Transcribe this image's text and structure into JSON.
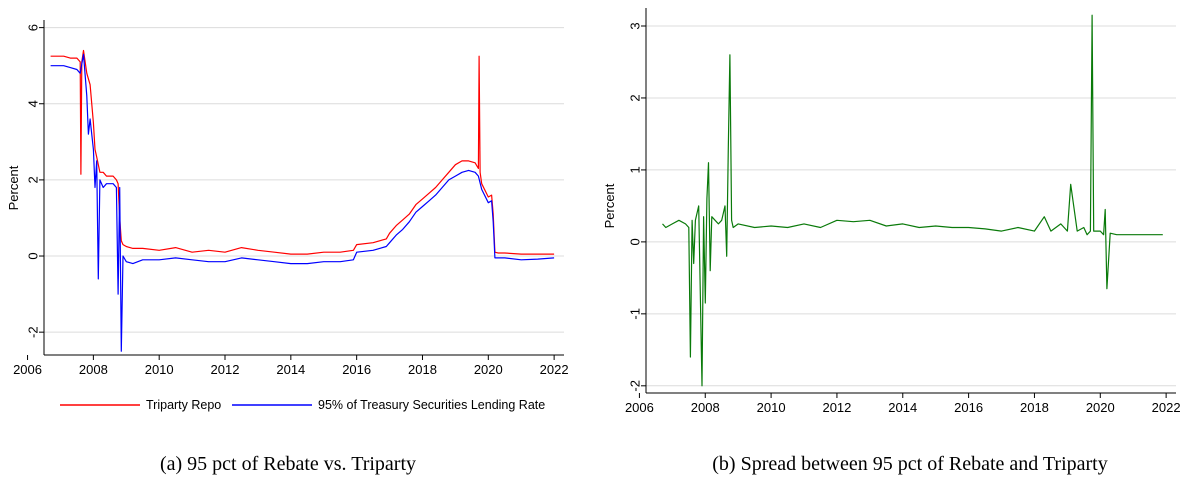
{
  "chart_data": [
    {
      "type": "line",
      "panel": "a",
      "caption": "(a) 95 pct of Rebate vs. Triparty",
      "xlabel": "",
      "ylabel": "Percent",
      "xlim": [
        2006.5,
        2022.3
      ],
      "ylim": [
        -2.6,
        6.2
      ],
      "xticks": [
        2006,
        2008,
        2010,
        2012,
        2014,
        2016,
        2018,
        2020,
        2022
      ],
      "yticks": [
        -2,
        0,
        2,
        4,
        6
      ],
      "grid": true,
      "legend": "bottom",
      "series": [
        {
          "name": "Triparty Repo",
          "color": "#ff0000",
          "x": [
            2006.7,
            2006.9,
            2007.1,
            2007.3,
            2007.5,
            2007.6,
            2007.62,
            2007.65,
            2007.7,
            2007.8,
            2007.9,
            2008.0,
            2008.05,
            2008.1,
            2008.2,
            2008.3,
            2008.4,
            2008.5,
            2008.6,
            2008.7,
            2008.75,
            2008.8,
            2008.85,
            2008.9,
            2009.0,
            2009.2,
            2009.5,
            2010.0,
            2010.5,
            2011.0,
            2011.5,
            2012.0,
            2012.5,
            2013.0,
            2013.5,
            2014.0,
            2014.5,
            2015.0,
            2015.5,
            2015.9,
            2016.0,
            2016.5,
            2016.9,
            2017.0,
            2017.2,
            2017.4,
            2017.6,
            2017.8,
            2018.0,
            2018.2,
            2018.4,
            2018.6,
            2018.8,
            2019.0,
            2019.2,
            2019.4,
            2019.6,
            2019.7,
            2019.72,
            2019.75,
            2019.8,
            2020.0,
            2020.1,
            2020.15,
            2020.2,
            2020.3,
            2020.5,
            2021.0,
            2021.5,
            2022.0
          ],
          "y": [
            5.25,
            5.25,
            5.25,
            5.2,
            5.2,
            5.1,
            2.15,
            5.1,
            5.4,
            4.8,
            4.5,
            3.5,
            2.8,
            2.6,
            2.2,
            2.2,
            2.1,
            2.1,
            2.1,
            2.0,
            1.9,
            1.0,
            0.4,
            0.3,
            0.25,
            0.2,
            0.2,
            0.15,
            0.22,
            0.1,
            0.15,
            0.1,
            0.22,
            0.15,
            0.1,
            0.05,
            0.05,
            0.1,
            0.1,
            0.15,
            0.3,
            0.35,
            0.45,
            0.6,
            0.8,
            0.95,
            1.1,
            1.35,
            1.5,
            1.65,
            1.8,
            2.0,
            2.2,
            2.4,
            2.5,
            2.5,
            2.45,
            2.3,
            5.25,
            2.2,
            1.9,
            1.55,
            1.6,
            1.1,
            0.1,
            0.08,
            0.08,
            0.05,
            0.05,
            0.05
          ]
        },
        {
          "name": "95% of Treasury Securities Lending Rate",
          "color": "#0000ff",
          "x": [
            2006.7,
            2006.9,
            2007.1,
            2007.3,
            2007.5,
            2007.6,
            2007.7,
            2007.8,
            2007.85,
            2007.9,
            2008.0,
            2008.05,
            2008.1,
            2008.15,
            2008.2,
            2008.3,
            2008.4,
            2008.5,
            2008.6,
            2008.7,
            2008.75,
            2008.8,
            2008.85,
            2008.9,
            2009.0,
            2009.2,
            2009.5,
            2010.0,
            2010.5,
            2011.0,
            2011.5,
            2012.0,
            2012.5,
            2013.0,
            2013.5,
            2014.0,
            2014.5,
            2015.0,
            2015.5,
            2015.9,
            2016.0,
            2016.5,
            2016.9,
            2017.0,
            2017.2,
            2017.4,
            2017.6,
            2017.8,
            2018.0,
            2018.2,
            2018.4,
            2018.6,
            2018.8,
            2019.0,
            2019.2,
            2019.4,
            2019.6,
            2019.7,
            2019.8,
            2020.0,
            2020.1,
            2020.15,
            2020.2,
            2020.3,
            2020.5,
            2021.0,
            2021.5,
            2022.0
          ],
          "y": [
            5.0,
            5.0,
            5.0,
            4.95,
            4.9,
            4.8,
            5.3,
            4.2,
            3.2,
            3.6,
            2.8,
            1.8,
            2.5,
            -0.6,
            2.0,
            1.8,
            1.9,
            1.9,
            1.9,
            1.8,
            -1.0,
            1.8,
            -2.5,
            0.0,
            -0.15,
            -0.2,
            -0.1,
            -0.1,
            -0.05,
            -0.1,
            -0.15,
            -0.15,
            -0.05,
            -0.1,
            -0.15,
            -0.2,
            -0.2,
            -0.15,
            -0.15,
            -0.1,
            0.1,
            0.15,
            0.25,
            0.35,
            0.55,
            0.7,
            0.9,
            1.15,
            1.3,
            1.45,
            1.6,
            1.8,
            2.0,
            2.1,
            2.2,
            2.25,
            2.2,
            2.1,
            1.75,
            1.4,
            1.45,
            0.9,
            -0.05,
            -0.05,
            -0.05,
            -0.1,
            -0.08,
            -0.05
          ]
        }
      ]
    },
    {
      "type": "line",
      "panel": "b",
      "caption": "(b) Spread between 95 pct of Rebate and Triparty",
      "xlabel": "",
      "ylabel": "Percent",
      "xlim": [
        2006.2,
        2022.3
      ],
      "ylim": [
        -2.1,
        3.25
      ],
      "xticks": [
        2006,
        2008,
        2010,
        2012,
        2014,
        2016,
        2018,
        2020,
        2022
      ],
      "yticks": [
        -2,
        -1,
        0,
        1,
        2,
        3
      ],
      "grid": true,
      "legend": "none",
      "series": [
        {
          "name": "",
          "color": "#0a7a0a",
          "x": [
            2006.7,
            2006.8,
            2007.0,
            2007.2,
            2007.4,
            2007.5,
            2007.55,
            2007.6,
            2007.65,
            2007.7,
            2007.8,
            2007.9,
            2007.95,
            2008.0,
            2008.05,
            2008.1,
            2008.15,
            2008.2,
            2008.3,
            2008.4,
            2008.5,
            2008.6,
            2008.65,
            2008.7,
            2008.75,
            2008.8,
            2008.85,
            2009.0,
            2009.5,
            2010.0,
            2010.5,
            2011.0,
            2011.5,
            2012.0,
            2012.5,
            2013.0,
            2013.5,
            2014.0,
            2014.5,
            2015.0,
            2015.5,
            2016.0,
            2016.5,
            2017.0,
            2017.5,
            2018.0,
            2018.3,
            2018.5,
            2018.8,
            2019.0,
            2019.1,
            2019.3,
            2019.5,
            2019.6,
            2019.7,
            2019.75,
            2019.8,
            2020.0,
            2020.1,
            2020.15,
            2020.2,
            2020.3,
            2020.5,
            2021.0,
            2021.5,
            2021.9
          ],
          "y": [
            0.25,
            0.2,
            0.25,
            0.3,
            0.25,
            0.2,
            -1.6,
            0.3,
            -0.3,
            0.3,
            0.5,
            -2.0,
            0.35,
            -0.85,
            0.6,
            1.1,
            -0.4,
            0.35,
            0.3,
            0.25,
            0.3,
            0.5,
            -0.2,
            1.3,
            2.6,
            0.3,
            0.2,
            0.25,
            0.2,
            0.22,
            0.2,
            0.25,
            0.2,
            0.3,
            0.28,
            0.3,
            0.22,
            0.25,
            0.2,
            0.22,
            0.2,
            0.2,
            0.18,
            0.15,
            0.2,
            0.15,
            0.35,
            0.15,
            0.25,
            0.15,
            0.8,
            0.15,
            0.2,
            0.1,
            0.15,
            3.15,
            0.15,
            0.15,
            0.1,
            0.45,
            -0.65,
            0.12,
            0.1,
            0.1,
            0.1,
            0.1
          ]
        }
      ]
    }
  ]
}
